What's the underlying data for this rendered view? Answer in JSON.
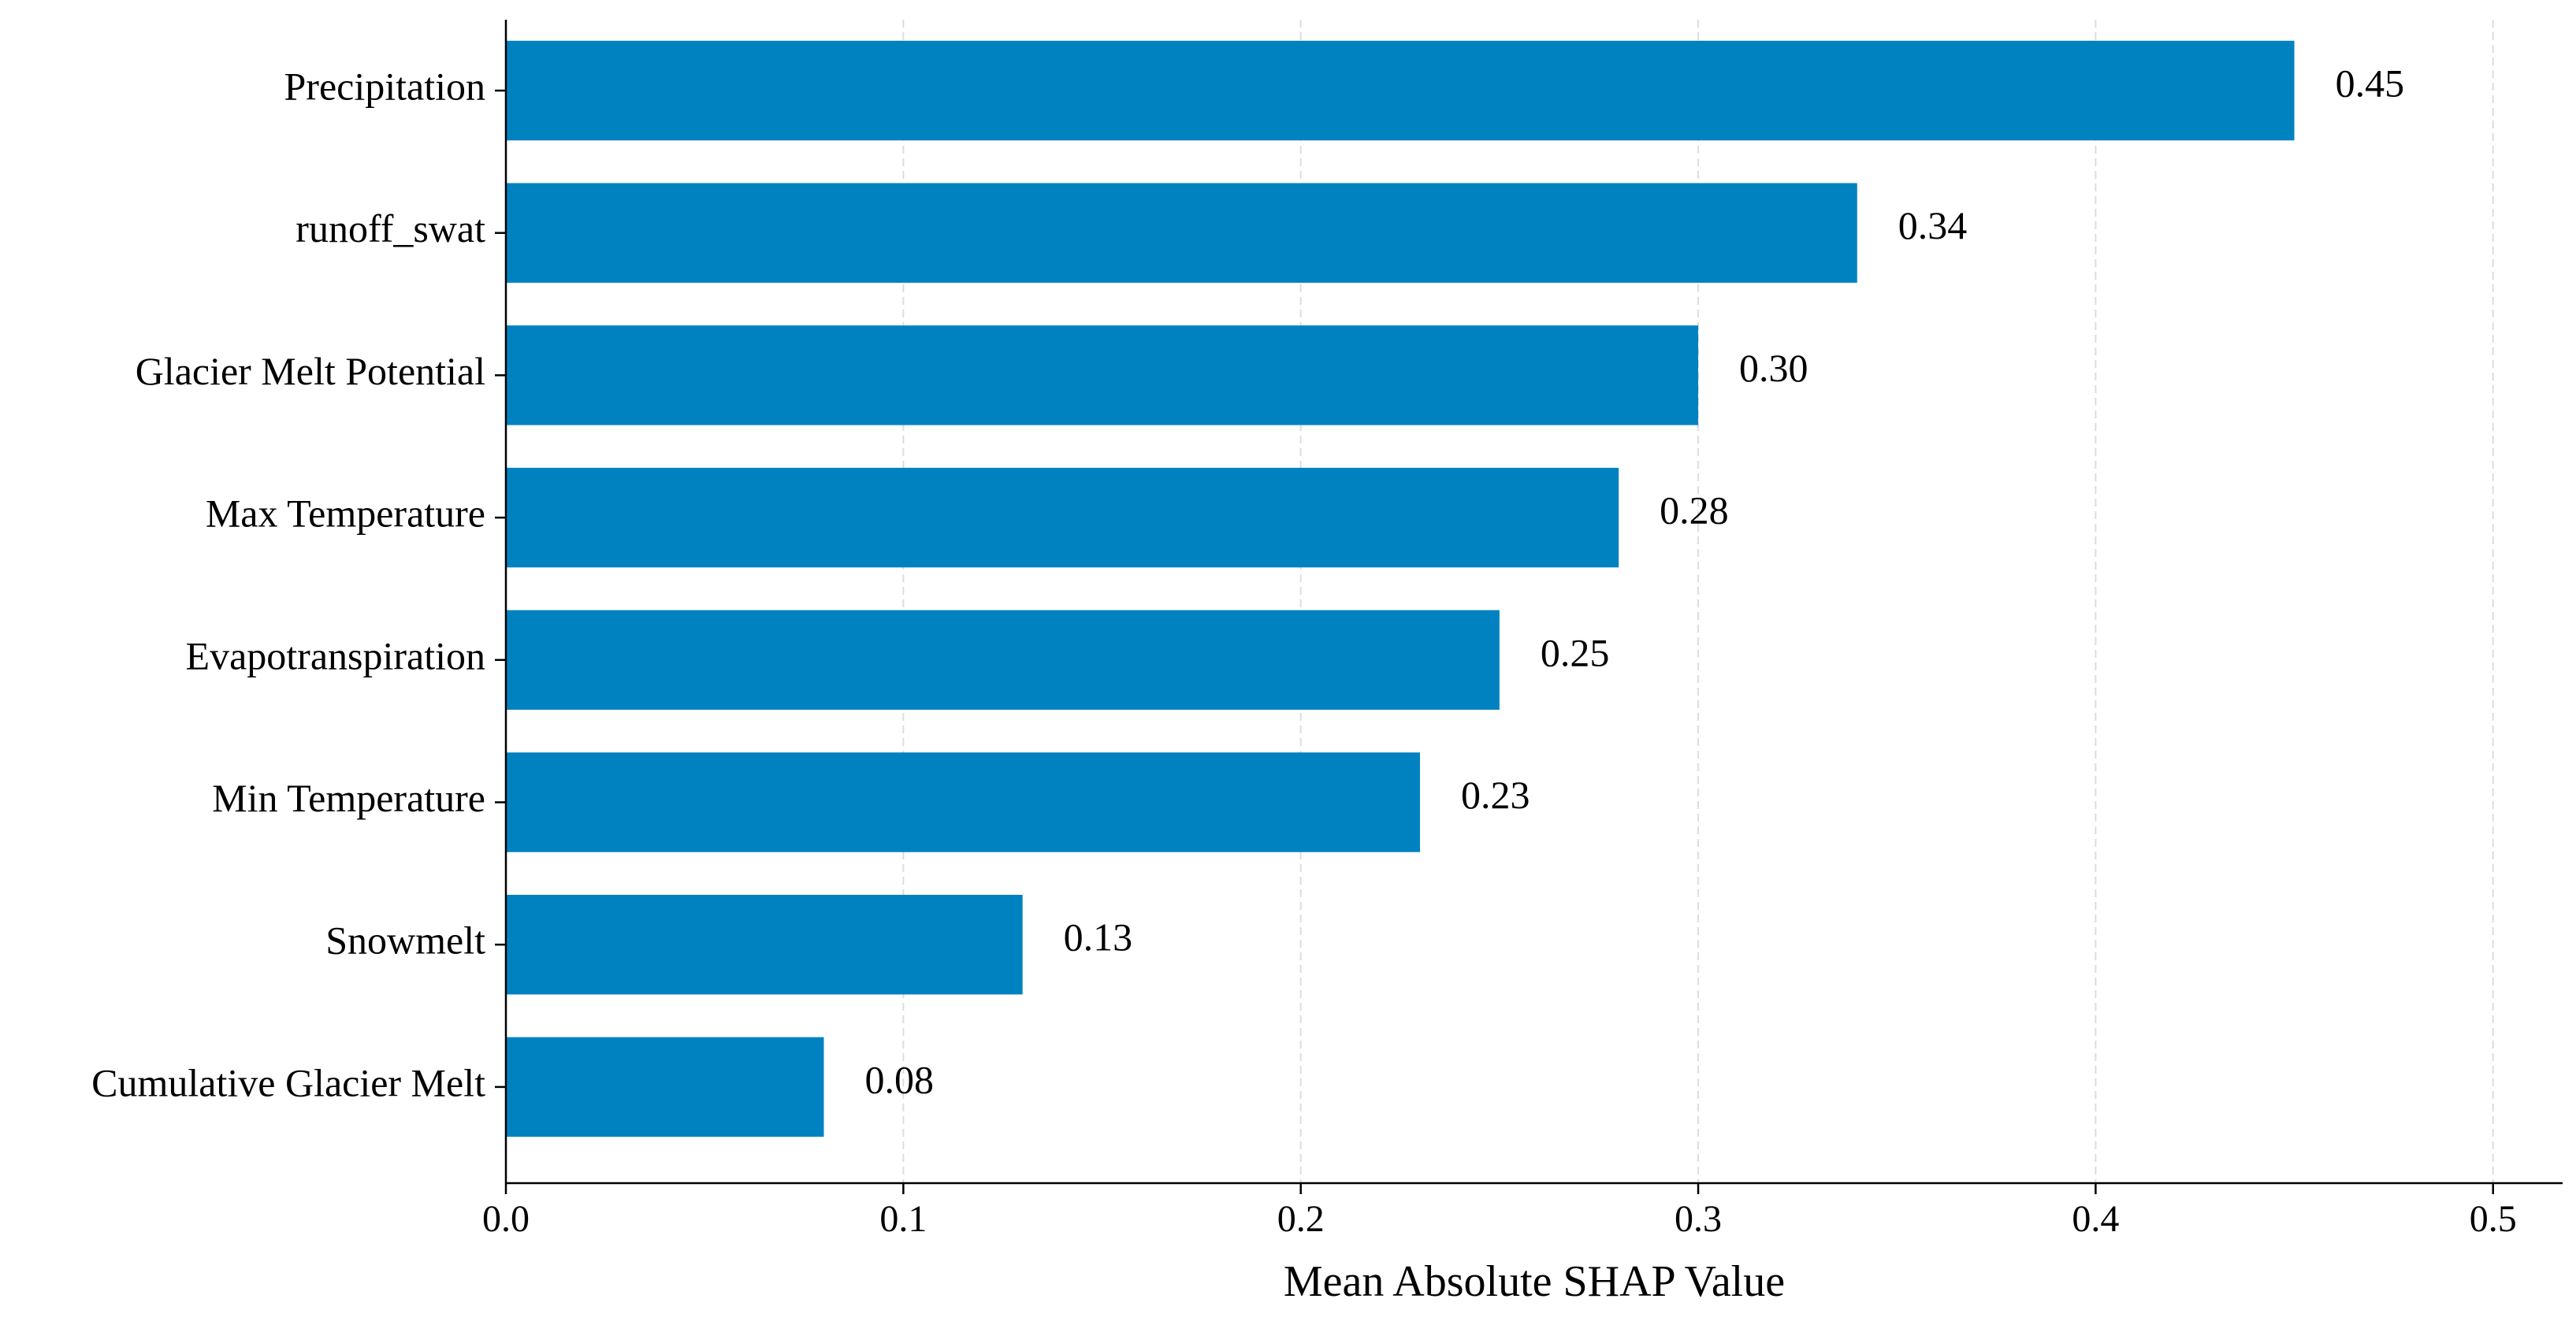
{
  "chart_data": {
    "type": "bar",
    "orientation": "horizontal",
    "categories": [
      "Precipitation",
      "runoff_swat",
      "Glacier Melt Potential",
      "Max Temperature",
      "Evapotranspiration",
      "Min Temperature",
      "Snowmelt",
      "Cumulative Glacier Melt"
    ],
    "values": [
      0.45,
      0.34,
      0.3,
      0.28,
      0.25,
      0.23,
      0.13,
      0.08
    ],
    "value_labels": [
      "0.45",
      "0.34",
      "0.30",
      "0.28",
      "0.25",
      "0.23",
      "0.13",
      "0.08"
    ],
    "color": "#0082c0",
    "xlabel": "Mean Absolute SHAP Value",
    "xlim": [
      0,
      0.5175
    ],
    "xticks": [
      {
        "value": 0,
        "label": "0.0"
      },
      0.1,
      0.2,
      0.3,
      0.4,
      0.5
    ],
    "grid": true
  }
}
